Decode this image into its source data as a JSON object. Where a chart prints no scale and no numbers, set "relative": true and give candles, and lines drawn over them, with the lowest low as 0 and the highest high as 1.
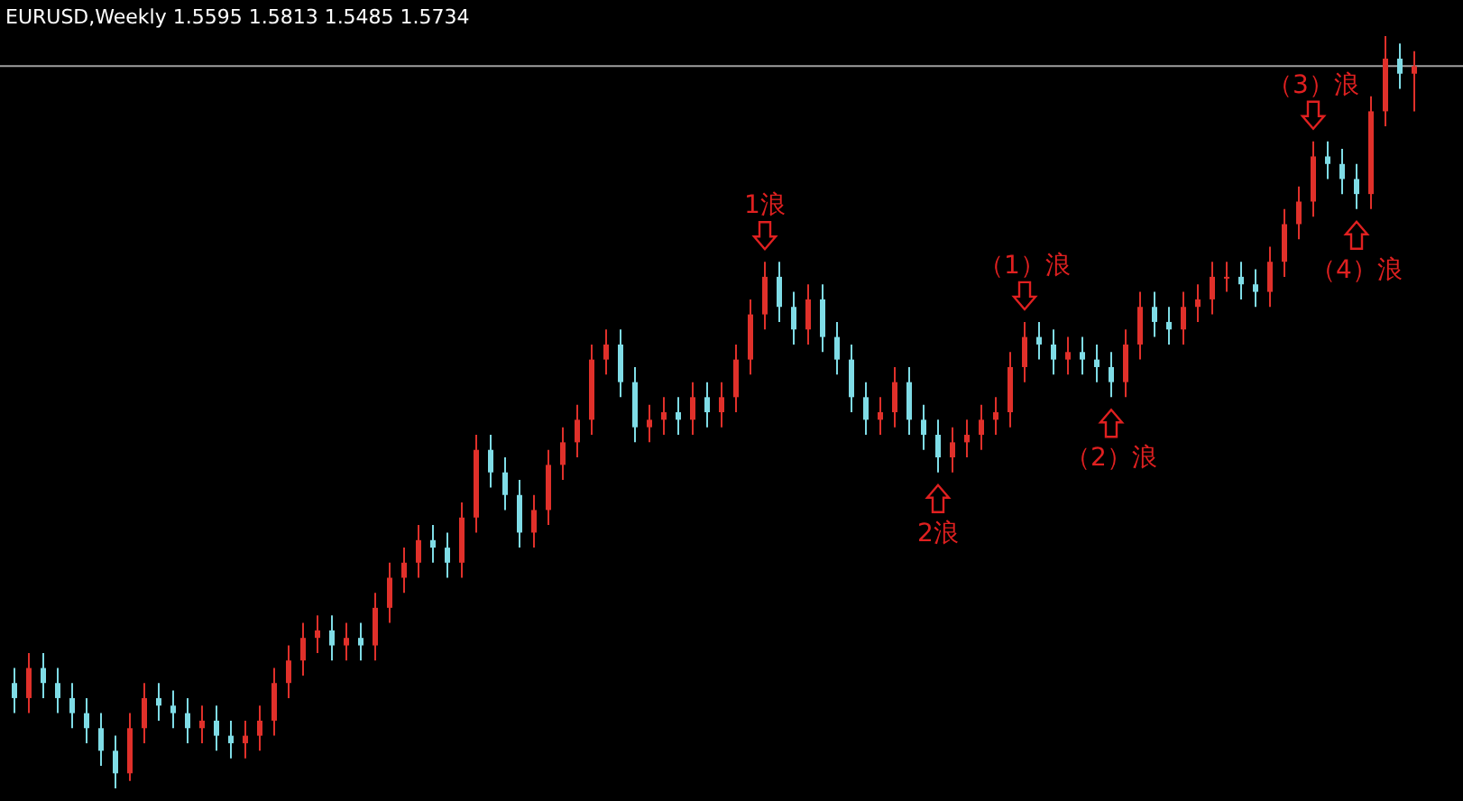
{
  "chart_data": {
    "type": "candlestick",
    "title": "EURUSD,Weekly  1.5595 1.5813 1.5485 1.5734",
    "relative": true,
    "tick_labels": false,
    "categories": [
      null,
      null,
      null,
      null,
      null,
      null,
      null,
      null,
      null,
      null,
      null,
      null,
      null,
      null,
      null,
      null,
      null,
      null,
      null,
      null,
      null,
      null,
      null,
      null,
      null,
      null,
      null,
      null,
      null,
      null,
      null,
      null,
      null,
      null,
      null,
      null,
      null,
      null,
      null,
      null,
      null,
      null,
      null,
      null,
      null,
      null,
      null,
      null,
      null,
      null,
      null,
      null,
      null,
      null,
      null,
      null,
      null,
      null,
      null,
      null,
      null,
      null,
      null,
      null,
      null,
      null,
      null,
      null,
      null,
      null,
      null,
      null,
      null,
      null,
      null,
      null,
      null,
      null,
      null,
      null,
      null,
      null,
      null,
      null,
      null,
      null,
      null,
      null,
      null,
      null,
      null,
      null,
      null,
      null,
      null,
      null,
      null,
      null
    ],
    "ohlc": [
      [
        0.14,
        0.16,
        0.1,
        0.12
      ],
      [
        0.12,
        0.18,
        0.1,
        0.16
      ],
      [
        0.16,
        0.18,
        0.12,
        0.14
      ],
      [
        0.14,
        0.16,
        0.1,
        0.12
      ],
      [
        0.12,
        0.14,
        0.08,
        0.1
      ],
      [
        0.1,
        0.12,
        0.06,
        0.08
      ],
      [
        0.08,
        0.1,
        0.03,
        0.05
      ],
      [
        0.05,
        0.07,
        0,
        0.02
      ],
      [
        0.02,
        0.1,
        0.01,
        0.08
      ],
      [
        0.08,
        0.14,
        0.06,
        0.12
      ],
      [
        0.12,
        0.14,
        0.09,
        0.11
      ],
      [
        0.11,
        0.13,
        0.08,
        0.1
      ],
      [
        0.1,
        0.12,
        0.06,
        0.08
      ],
      [
        0.08,
        0.11,
        0.06,
        0.09
      ],
      [
        0.09,
        0.11,
        0.05,
        0.07
      ],
      [
        0.07,
        0.09,
        0.04,
        0.06
      ],
      [
        0.06,
        0.09,
        0.04,
        0.07
      ],
      [
        0.07,
        0.11,
        0.05,
        0.09
      ],
      [
        0.09,
        0.16,
        0.07,
        0.14
      ],
      [
        0.14,
        0.19,
        0.12,
        0.17
      ],
      [
        0.17,
        0.22,
        0.15,
        0.2
      ],
      [
        0.2,
        0.23,
        0.18,
        0.21
      ],
      [
        0.21,
        0.23,
        0.17,
        0.19
      ],
      [
        0.19,
        0.22,
        0.17,
        0.2
      ],
      [
        0.2,
        0.22,
        0.17,
        0.19
      ],
      [
        0.19,
        0.26,
        0.17,
        0.24
      ],
      [
        0.24,
        0.3,
        0.22,
        0.28
      ],
      [
        0.28,
        0.32,
        0.26,
        0.3
      ],
      [
        0.3,
        0.35,
        0.28,
        0.33
      ],
      [
        0.33,
        0.35,
        0.3,
        0.32
      ],
      [
        0.32,
        0.34,
        0.28,
        0.3
      ],
      [
        0.3,
        0.38,
        0.28,
        0.36
      ],
      [
        0.36,
        0.47,
        0.34,
        0.45
      ],
      [
        0.45,
        0.47,
        0.4,
        0.42
      ],
      [
        0.42,
        0.44,
        0.37,
        0.39
      ],
      [
        0.39,
        0.41,
        0.32,
        0.34
      ],
      [
        0.34,
        0.39,
        0.32,
        0.37
      ],
      [
        0.37,
        0.45,
        0.35,
        0.43
      ],
      [
        0.43,
        0.48,
        0.41,
        0.46
      ],
      [
        0.46,
        0.51,
        0.44,
        0.49
      ],
      [
        0.49,
        0.59,
        0.47,
        0.57
      ],
      [
        0.57,
        0.61,
        0.55,
        0.59
      ],
      [
        0.59,
        0.61,
        0.52,
        0.54
      ],
      [
        0.54,
        0.56,
        0.46,
        0.48
      ],
      [
        0.48,
        0.51,
        0.46,
        0.49
      ],
      [
        0.49,
        0.52,
        0.47,
        0.5
      ],
      [
        0.5,
        0.52,
        0.47,
        0.49
      ],
      [
        0.49,
        0.54,
        0.47,
        0.52
      ],
      [
        0.52,
        0.54,
        0.48,
        0.5
      ],
      [
        0.5,
        0.54,
        0.48,
        0.52
      ],
      [
        0.52,
        0.59,
        0.5,
        0.57
      ],
      [
        0.57,
        0.65,
        0.55,
        0.63
      ],
      [
        0.63,
        0.7,
        0.61,
        0.68
      ],
      [
        0.68,
        0.7,
        0.62,
        0.64
      ],
      [
        0.64,
        0.66,
        0.59,
        0.61
      ],
      [
        0.61,
        0.67,
        0.59,
        0.65
      ],
      [
        0.65,
        0.67,
        0.58,
        0.6
      ],
      [
        0.6,
        0.62,
        0.55,
        0.57
      ],
      [
        0.57,
        0.59,
        0.5,
        0.52
      ],
      [
        0.52,
        0.54,
        0.47,
        0.49
      ],
      [
        0.49,
        0.52,
        0.47,
        0.5
      ],
      [
        0.5,
        0.56,
        0.48,
        0.54
      ],
      [
        0.54,
        0.56,
        0.47,
        0.49
      ],
      [
        0.49,
        0.51,
        0.45,
        0.47
      ],
      [
        0.47,
        0.49,
        0.42,
        0.44
      ],
      [
        0.44,
        0.48,
        0.42,
        0.46
      ],
      [
        0.46,
        0.49,
        0.44,
        0.47
      ],
      [
        0.47,
        0.51,
        0.45,
        0.49
      ],
      [
        0.49,
        0.52,
        0.47,
        0.5
      ],
      [
        0.5,
        0.58,
        0.48,
        0.56
      ],
      [
        0.56,
        0.62,
        0.54,
        0.6
      ],
      [
        0.6,
        0.62,
        0.57,
        0.59
      ],
      [
        0.59,
        0.61,
        0.55,
        0.57
      ],
      [
        0.57,
        0.6,
        0.55,
        0.58
      ],
      [
        0.58,
        0.6,
        0.55,
        0.57
      ],
      [
        0.57,
        0.59,
        0.54,
        0.56
      ],
      [
        0.56,
        0.58,
        0.52,
        0.54
      ],
      [
        0.54,
        0.61,
        0.52,
        0.59
      ],
      [
        0.59,
        0.66,
        0.57,
        0.64
      ],
      [
        0.64,
        0.66,
        0.6,
        0.62
      ],
      [
        0.62,
        0.64,
        0.59,
        0.61
      ],
      [
        0.61,
        0.66,
        0.59,
        0.64
      ],
      [
        0.64,
        0.67,
        0.62,
        0.65
      ],
      [
        0.65,
        0.7,
        0.63,
        0.68
      ],
      [
        0.68,
        0.7,
        0.66,
        0.68
      ],
      [
        0.68,
        0.7,
        0.65,
        0.67
      ],
      [
        0.67,
        0.69,
        0.64,
        0.66
      ],
      [
        0.66,
        0.72,
        0.64,
        0.7
      ],
      [
        0.7,
        0.77,
        0.68,
        0.75
      ],
      [
        0.75,
        0.8,
        0.73,
        0.78
      ],
      [
        0.78,
        0.86,
        0.76,
        0.84
      ],
      [
        0.84,
        0.86,
        0.81,
        0.83
      ],
      [
        0.83,
        0.85,
        0.79,
        0.81
      ],
      [
        0.81,
        0.83,
        0.77,
        0.79
      ],
      [
        0.79,
        0.92,
        0.77,
        0.9
      ],
      [
        0.9,
        1,
        0.88,
        0.97
      ],
      [
        0.97,
        0.99,
        0.93,
        0.95
      ],
      [
        0.95,
        0.98,
        0.9,
        0.96
      ]
    ],
    "colors": [
      "#7fdce6",
      "#e0302a",
      "#7fdce6",
      "#7fdce6",
      "#7fdce6",
      "#7fdce6",
      "#7fdce6",
      "#7fdce6",
      "#e0302a",
      "#e0302a",
      "#7fdce6",
      "#7fdce6",
      "#7fdce6",
      "#e0302a",
      "#7fdce6",
      "#7fdce6",
      "#e0302a",
      "#e0302a",
      "#e0302a",
      "#e0302a",
      "#e0302a",
      "#e0302a",
      "#7fdce6",
      "#e0302a",
      "#7fdce6",
      "#e0302a",
      "#e0302a",
      "#e0302a",
      "#e0302a",
      "#7fdce6",
      "#7fdce6",
      "#e0302a",
      "#e0302a",
      "#7fdce6",
      "#7fdce6",
      "#7fdce6",
      "#e0302a",
      "#e0302a",
      "#e0302a",
      "#e0302a",
      "#e0302a",
      "#e0302a",
      "#7fdce6",
      "#7fdce6",
      "#e0302a",
      "#e0302a",
      "#7fdce6",
      "#e0302a",
      "#7fdce6",
      "#e0302a",
      "#e0302a",
      "#e0302a",
      "#e0302a",
      "#7fdce6",
      "#7fdce6",
      "#e0302a",
      "#7fdce6",
      "#7fdce6",
      "#7fdce6",
      "#7fdce6",
      "#e0302a",
      "#e0302a",
      "#7fdce6",
      "#7fdce6",
      "#7fdce6",
      "#e0302a",
      "#e0302a",
      "#e0302a",
      "#e0302a",
      "#e0302a",
      "#e0302a",
      "#7fdce6",
      "#7fdce6",
      "#e0302a",
      "#7fdce6",
      "#7fdce6",
      "#7fdce6",
      "#e0302a",
      "#e0302a",
      "#7fdce6",
      "#7fdce6",
      "#e0302a",
      "#e0302a",
      "#e0302a",
      "#e0302a",
      "#7fdce6",
      "#7fdce6",
      "#e0302a",
      "#e0302a",
      "#e0302a",
      "#e0302a",
      "#7fdce6",
      "#7fdce6",
      "#7fdce6",
      "#e0302a",
      "#e0302a",
      "#7fdce6",
      "#e0302a"
    ],
    "ref_lines": [
      {
        "axis": "y",
        "value": 0.96,
        "color": "#a0a0a0"
      }
    ],
    "annotations": [
      {
        "text": "1浪",
        "y": 0.7
      },
      {
        "text": "2浪",
        "y": 0.42
      },
      {
        "text": "（1）浪",
        "y": 0.62
      },
      {
        "text": "（2）浪",
        "y": 0.52
      },
      {
        "text": "（3）浪",
        "y": 0.86
      },
      {
        "text": "（4）浪",
        "y": 0.77
      }
    ]
  }
}
